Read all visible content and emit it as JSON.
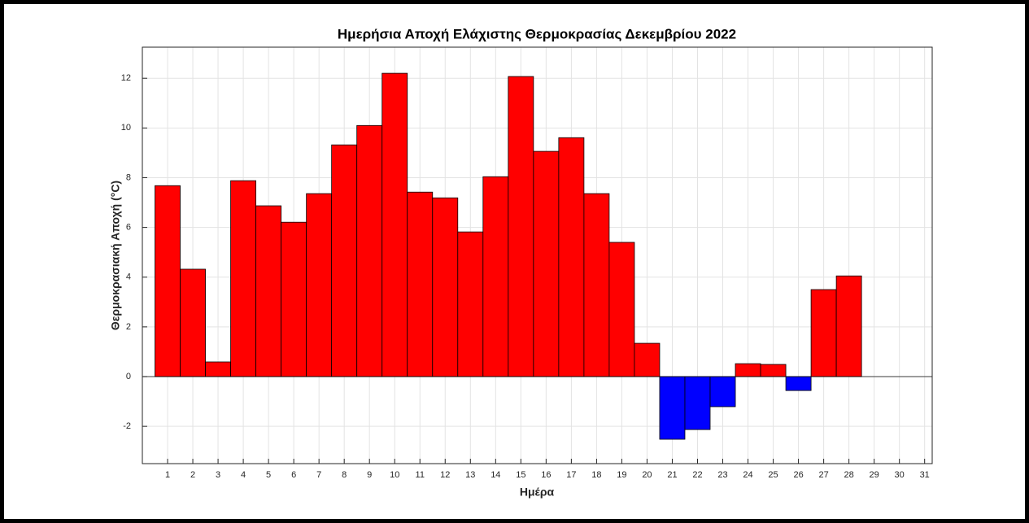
{
  "chart_data": {
    "type": "bar",
    "title": "Ημερήσια Αποχή Ελάχιστης Θερμοκρασίας Δεκεμβρίου 2022",
    "xlabel": "Ημέρα",
    "ylabel": "Θερμοκρασιακή Αποχή (°C)",
    "x": [
      1,
      2,
      3,
      4,
      5,
      6,
      7,
      8,
      9,
      10,
      11,
      12,
      13,
      14,
      15,
      16,
      17,
      18,
      19,
      20,
      21,
      22,
      23,
      24,
      25,
      26,
      27,
      28
    ],
    "values": [
      7.68,
      4.32,
      0.59,
      7.88,
      6.87,
      6.21,
      7.36,
      9.32,
      10.1,
      12.2,
      7.42,
      7.19,
      5.82,
      8.04,
      12.07,
      9.06,
      9.61,
      7.36,
      5.4,
      1.34,
      -2.52,
      -2.13,
      -1.21,
      0.52,
      0.49,
      -0.56,
      3.5,
      4.05
    ],
    "positive_color": "#ff0000",
    "negative_color": "#0000ff",
    "xlim": [
      0,
      31.3
    ],
    "xticks": [
      1,
      2,
      3,
      4,
      5,
      6,
      7,
      8,
      9,
      10,
      11,
      12,
      13,
      14,
      15,
      16,
      17,
      18,
      19,
      20,
      21,
      22,
      23,
      24,
      25,
      26,
      27,
      28,
      29,
      30,
      31
    ],
    "ylim": [
      -3.5,
      13.25
    ],
    "yticks": [
      -2,
      0,
      2,
      4,
      6,
      8,
      10,
      12
    ],
    "grid": true
  }
}
